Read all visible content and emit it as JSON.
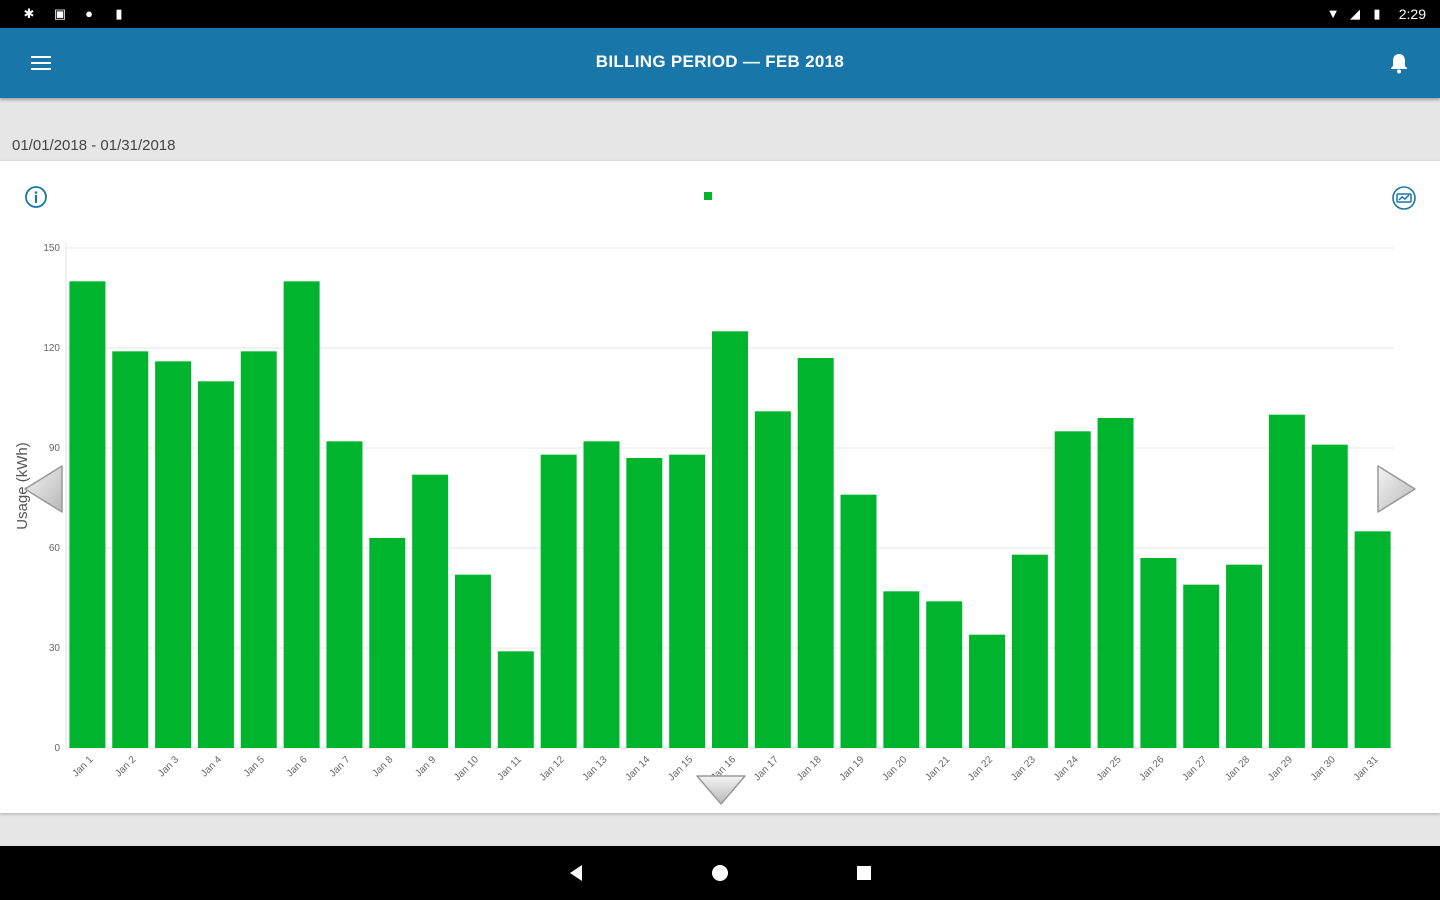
{
  "status_bar": {
    "time": "2:29",
    "icons": [
      "settings-icon",
      "save-icon",
      "circle-icon",
      "sd-card-icon",
      "wifi-icon",
      "signal-icon",
      "battery-icon"
    ]
  },
  "app_bar": {
    "title": "BILLING PERIOD  —  FEB 2018",
    "menu_icon": "hamburger-menu-icon",
    "notification_icon": "bell-icon"
  },
  "date_range": "01/01/2018 - 01/31/2018",
  "card": {
    "info_icon": "info-icon",
    "export_icon": "export-chart-icon"
  },
  "colors": {
    "app_bar": "#1877a8",
    "bar": "#00b52d",
    "grid": "#e4e4e4"
  },
  "chart_data": {
    "type": "bar",
    "ylabel": "Usage (kWh)",
    "ylim": [
      0,
      150
    ],
    "y_ticks": [
      0,
      30,
      60,
      90,
      120,
      150
    ],
    "grid": true,
    "categories": [
      "Jan 1",
      "Jan 2",
      "Jan 3",
      "Jan 4",
      "Jan 5",
      "Jan 6",
      "Jan 7",
      "Jan 8",
      "Jan 9",
      "Jan 10",
      "Jan 11",
      "Jan 12",
      "Jan 13",
      "Jan 14",
      "Jan 15",
      "Jan 16",
      "Jan 17",
      "Jan 18",
      "Jan 19",
      "Jan 20",
      "Jan 21",
      "Jan 22",
      "Jan 23",
      "Jan 24",
      "Jan 25",
      "Jan 26",
      "Jan 27",
      "Jan 28",
      "Jan 29",
      "Jan 30",
      "Jan 31"
    ],
    "values": [
      140,
      119,
      116,
      110,
      119,
      140,
      92,
      63,
      82,
      52,
      29,
      88,
      92,
      87,
      88,
      125,
      101,
      117,
      76,
      47,
      44,
      34,
      58,
      95,
      99,
      57,
      49,
      55,
      100,
      91,
      65
    ]
  },
  "nav": {
    "prev_icon": "chevron-left-icon",
    "next_icon": "chevron-right-icon",
    "down_icon": "chevron-down-icon"
  },
  "system_nav": {
    "back_icon": "back-icon",
    "home_icon": "home-icon",
    "recents_icon": "recents-icon"
  }
}
